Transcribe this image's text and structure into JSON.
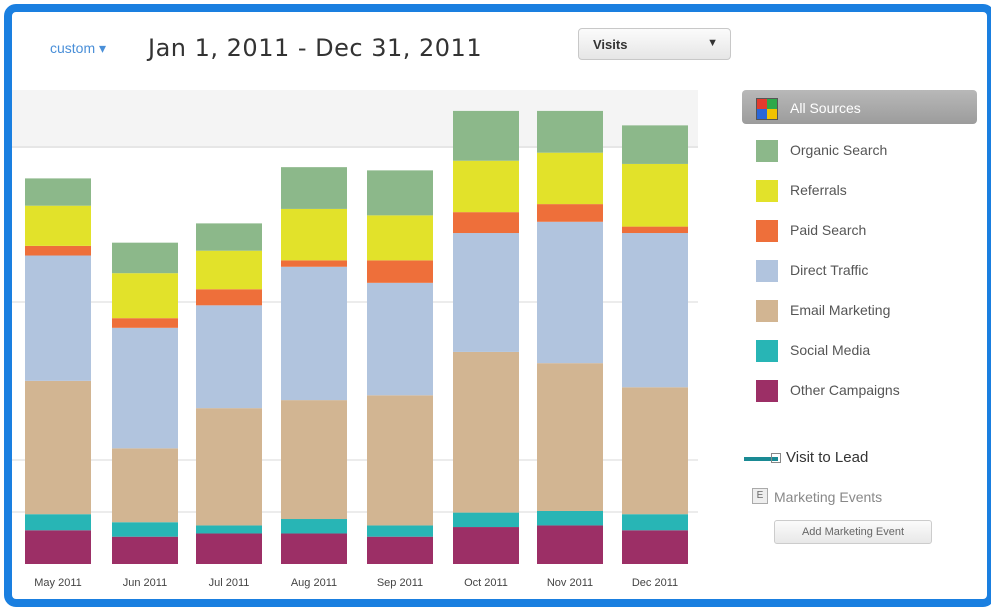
{
  "header": {
    "range_link": "custom ▾",
    "date_range": "Jan 1, 2011 - Dec 31, 2011",
    "metric_select": {
      "value": "Visits",
      "arrow": "▼"
    }
  },
  "legend": {
    "items": [
      {
        "label": "All Sources",
        "color": "multi",
        "active": true,
        "icon": "all-sources-icon"
      },
      {
        "label": "Organic Search",
        "color": "#8cb88a"
      },
      {
        "label": "Referrals",
        "color": "#e2e22a"
      },
      {
        "label": "Paid Search",
        "color": "#ee6f3a"
      },
      {
        "label": "Direct Traffic",
        "color": "#b1c4de"
      },
      {
        "label": "Email Marketing",
        "color": "#d2b592"
      },
      {
        "label": "Social Media",
        "color": "#28b5b5"
      },
      {
        "label": "Other Campaigns",
        "color": "#9c2f66"
      }
    ],
    "overlay_label": "Visit to Lead",
    "events_box": "E",
    "events_label": "Marketing Events",
    "add_event_button": "Add Marketing Event"
  },
  "chart_data": {
    "type": "bar",
    "stacked": true,
    "categories": [
      "May 2011",
      "Jun 2011",
      "Jul 2011",
      "Aug 2011",
      "Sep 2011",
      "Oct 2011",
      "Nov 2011",
      "Dec 2011"
    ],
    "series": [
      {
        "name": "Other Campaigns",
        "color": "#9c2f66",
        "values": [
          2.1,
          1.7,
          1.9,
          1.9,
          1.7,
          2.3,
          2.4,
          2.1
        ]
      },
      {
        "name": "Social Media",
        "color": "#28b5b5",
        "values": [
          1.0,
          0.9,
          0.5,
          0.9,
          0.7,
          0.9,
          0.9,
          1.0
        ]
      },
      {
        "name": "Email Marketing",
        "color": "#d2b592",
        "values": [
          8.3,
          4.6,
          7.3,
          7.4,
          8.1,
          10.0,
          9.2,
          7.9
        ]
      },
      {
        "name": "Direct Traffic",
        "color": "#b1c4de",
        "values": [
          7.8,
          7.5,
          6.4,
          8.3,
          7.0,
          7.4,
          8.8,
          9.6
        ]
      },
      {
        "name": "Paid Search",
        "color": "#ee6f3a",
        "values": [
          0.6,
          0.6,
          1.0,
          0.4,
          1.4,
          1.3,
          1.1,
          0.4
        ]
      },
      {
        "name": "Referrals",
        "color": "#e2e22a",
        "values": [
          2.5,
          2.8,
          2.4,
          3.2,
          2.8,
          3.2,
          3.2,
          3.9
        ]
      },
      {
        "name": "Organic Search",
        "color": "#8cb88a",
        "values": [
          1.7,
          1.9,
          1.7,
          2.6,
          2.8,
          3.1,
          2.6,
          2.4
        ]
      }
    ],
    "ylim": [
      0,
      30
    ],
    "grid": true,
    "legend_position": "right"
  }
}
